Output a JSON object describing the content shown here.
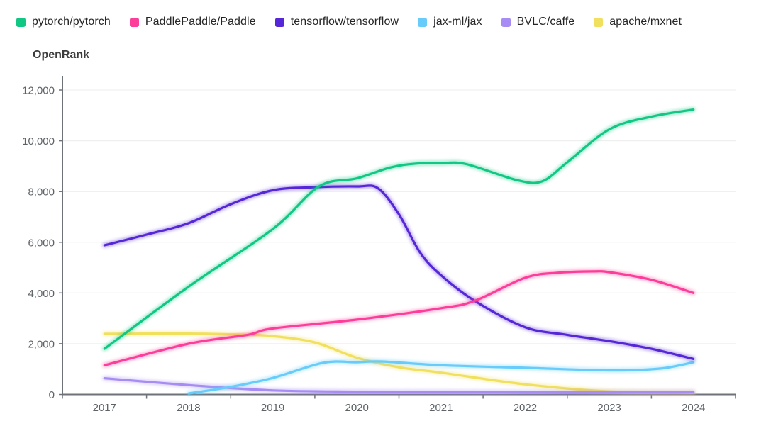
{
  "chart_data": {
    "type": "line",
    "title": "OpenRank",
    "legend_position": "top",
    "grid": true,
    "x_labels": [
      "2017",
      "2018",
      "2019",
      "2020",
      "2021",
      "2022",
      "2023",
      "2024"
    ],
    "x_range": [
      2017,
      2024
    ],
    "ylim": [
      0,
      12000
    ],
    "y_ticks": [
      {
        "value": 0,
        "label": "0"
      },
      {
        "value": 2000,
        "label": "2,000"
      },
      {
        "value": 4000,
        "label": "4,000"
      },
      {
        "value": 6000,
        "label": "6,000"
      },
      {
        "value": 8000,
        "label": "8,000"
      },
      {
        "value": 10000,
        "label": "10,000"
      },
      {
        "value": 12000,
        "label": "12,000"
      }
    ],
    "series": [
      {
        "name": "pytorch/pytorch",
        "color": "#11c784",
        "points": [
          [
            2017,
            1800
          ],
          [
            2018,
            4250
          ],
          [
            2019,
            6520
          ],
          [
            2019.55,
            8200
          ],
          [
            2020,
            8520
          ],
          [
            2020.4,
            8950
          ],
          [
            2020.7,
            9100
          ],
          [
            2021,
            9120
          ],
          [
            2021.3,
            9080
          ],
          [
            2021.9,
            8450
          ],
          [
            2022.2,
            8400
          ],
          [
            2022.5,
            9150
          ],
          [
            2023,
            10450
          ],
          [
            2023.5,
            10950
          ],
          [
            2024,
            11230
          ]
        ]
      },
      {
        "name": "PaddlePaddle/Paddle",
        "color": "#fc3d9a",
        "points": [
          [
            2017,
            1150
          ],
          [
            2018,
            2000
          ],
          [
            2018.7,
            2350
          ],
          [
            2019,
            2600
          ],
          [
            2020,
            2950
          ],
          [
            2021,
            3400
          ],
          [
            2021.4,
            3690
          ],
          [
            2022,
            4600
          ],
          [
            2022.4,
            4800
          ],
          [
            2022.8,
            4850
          ],
          [
            2023,
            4820
          ],
          [
            2023.5,
            4520
          ],
          [
            2024,
            4000
          ]
        ]
      },
      {
        "name": "tensorflow/tensorflow",
        "color": "#5527d7",
        "points": [
          [
            2017,
            5880
          ],
          [
            2017.5,
            6300
          ],
          [
            2018,
            6750
          ],
          [
            2018.5,
            7500
          ],
          [
            2019,
            8050
          ],
          [
            2019.5,
            8170
          ],
          [
            2020,
            8200
          ],
          [
            2020.25,
            8130
          ],
          [
            2020.5,
            7100
          ],
          [
            2020.75,
            5600
          ],
          [
            2021,
            4700
          ],
          [
            2021.4,
            3690
          ],
          [
            2022,
            2650
          ],
          [
            2022.5,
            2350
          ],
          [
            2023,
            2100
          ],
          [
            2023.5,
            1800
          ],
          [
            2024,
            1400
          ]
        ]
      },
      {
        "name": "jax-ml/jax",
        "color": "#67ccf9",
        "points": [
          [
            2018,
            40
          ],
          [
            2018.5,
            300
          ],
          [
            2019,
            650
          ],
          [
            2019.6,
            1250
          ],
          [
            2020,
            1270
          ],
          [
            2020.3,
            1300
          ],
          [
            2021,
            1150
          ],
          [
            2022,
            1050
          ],
          [
            2023,
            950
          ],
          [
            2023.6,
            1020
          ],
          [
            2024,
            1270
          ]
        ]
      },
      {
        "name": "BVLC/caffe",
        "color": "#a78df3",
        "points": [
          [
            2017,
            640
          ],
          [
            2018,
            370
          ],
          [
            2019,
            160
          ],
          [
            2020,
            110
          ],
          [
            2021,
            95
          ],
          [
            2022,
            85
          ],
          [
            2023,
            80
          ],
          [
            2024,
            90
          ]
        ]
      },
      {
        "name": "apache/mxnet",
        "color": "#f1df5e",
        "points": [
          [
            2017,
            2390
          ],
          [
            2018,
            2400
          ],
          [
            2018.6,
            2360
          ],
          [
            2019,
            2300
          ],
          [
            2019.5,
            2050
          ],
          [
            2020,
            1450
          ],
          [
            2020.5,
            1070
          ],
          [
            2021,
            860
          ],
          [
            2022,
            400
          ],
          [
            2023,
            120
          ],
          [
            2024,
            70
          ]
        ]
      }
    ],
    "style": {
      "axis_color": "#6e7279",
      "grid_color": "#ececec",
      "label_color": "#5e6368"
    }
  }
}
